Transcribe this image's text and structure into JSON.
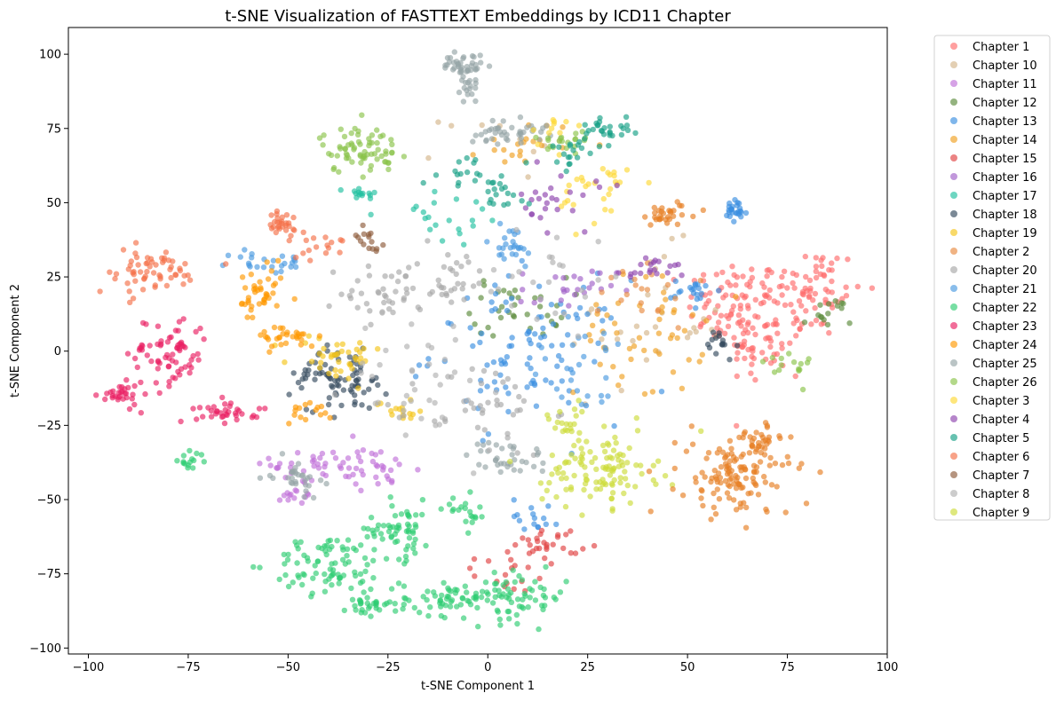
{
  "chart_data": {
    "type": "scatter",
    "title": "t-SNE Visualization of FASTTEXT Embeddings by ICD11 Chapter",
    "xlabel": "t-SNE Component 1",
    "ylabel": "t-SNE Component 2",
    "xlim": [
      -105,
      100
    ],
    "ylim": [
      -102,
      109
    ],
    "xticks": [
      -100,
      -75,
      -50,
      -25,
      0,
      25,
      50,
      75,
      100
    ],
    "yticks": [
      -100,
      -75,
      -50,
      -25,
      0,
      25,
      50,
      75,
      100
    ],
    "grid": false,
    "legend_position": "outside-right",
    "point_opacity": 0.65,
    "series": [
      {
        "name": "Chapter 1",
        "color": "#ff6b6b",
        "clusters": [
          {
            "cx": 62,
            "cy": 15,
            "sx": 6,
            "sy": 8,
            "n": 90
          },
          {
            "cx": 80,
            "cy": 20,
            "sx": 7,
            "sy": 8,
            "n": 80
          },
          {
            "cx": 70,
            "cy": 0,
            "sx": 5,
            "sy": 6,
            "n": 40
          }
        ]
      },
      {
        "name": "Chapter 10",
        "color": "#d4b58a",
        "clusters": [
          {
            "cx": 40,
            "cy": 10,
            "sx": 10,
            "sy": 12,
            "n": 30
          },
          {
            "cx": 5,
            "cy": 70,
            "sx": 8,
            "sy": 6,
            "n": 10
          }
        ]
      },
      {
        "name": "Chapter 11",
        "color": "#c070d8",
        "clusters": [
          {
            "cx": -42,
            "cy": -38,
            "sx": 6,
            "sy": 4,
            "n": 40
          },
          {
            "cx": -28,
            "cy": -40,
            "sx": 5,
            "sy": 3,
            "n": 25
          },
          {
            "cx": -48,
            "cy": -48,
            "sx": 3,
            "sy": 3,
            "n": 15
          }
        ]
      },
      {
        "name": "Chapter 12",
        "color": "#5a8a3a",
        "clusters": [
          {
            "cx": 8,
            "cy": 15,
            "sx": 6,
            "sy": 5,
            "n": 35
          },
          {
            "cx": 85,
            "cy": 12,
            "sx": 3,
            "sy": 3,
            "n": 15
          }
        ]
      },
      {
        "name": "Chapter 13",
        "color": "#3a8fe0",
        "clusters": [
          {
            "cx": 10,
            "cy": 0,
            "sx": 12,
            "sy": 12,
            "n": 100
          },
          {
            "cx": 62,
            "cy": 47,
            "sx": 1.5,
            "sy": 2,
            "n": 25
          },
          {
            "cx": 52,
            "cy": 20,
            "sx": 3,
            "sy": 2,
            "n": 20
          },
          {
            "cx": 12,
            "cy": -55,
            "sx": 3,
            "sy": 3,
            "n": 15
          }
        ]
      },
      {
        "name": "Chapter 14",
        "color": "#f0a020",
        "clusters": [
          {
            "cx": 38,
            "cy": 5,
            "sx": 8,
            "sy": 10,
            "n": 50
          },
          {
            "cx": 10,
            "cy": 70,
            "sx": 6,
            "sy": 4,
            "n": 20
          }
        ]
      },
      {
        "name": "Chapter 15",
        "color": "#e04040",
        "clusters": [
          {
            "cx": 15,
            "cy": -65,
            "sx": 4,
            "sy": 3,
            "n": 30
          },
          {
            "cx": 5,
            "cy": -75,
            "sx": 4,
            "sy": 3,
            "n": 15
          }
        ]
      },
      {
        "name": "Chapter 16",
        "color": "#a060c8",
        "clusters": [
          {
            "cx": 20,
            "cy": 20,
            "sx": 6,
            "sy": 4,
            "n": 25
          }
        ]
      },
      {
        "name": "Chapter 17",
        "color": "#20c0a0",
        "clusters": [
          {
            "cx": -32,
            "cy": 52,
            "sx": 2,
            "sy": 2,
            "n": 15
          },
          {
            "cx": -10,
            "cy": 45,
            "sx": 8,
            "sy": 6,
            "n": 20
          }
        ]
      },
      {
        "name": "Chapter 18",
        "color": "#34495e",
        "clusters": [
          {
            "cx": -35,
            "cy": -10,
            "sx": 5,
            "sy": 5,
            "n": 60
          },
          {
            "cx": -45,
            "cy": -8,
            "sx": 3,
            "sy": 3,
            "n": 20
          },
          {
            "cx": 58,
            "cy": 2,
            "sx": 2,
            "sy": 3,
            "n": 15
          }
        ]
      },
      {
        "name": "Chapter 19",
        "color": "#f5c518",
        "clusters": [
          {
            "cx": -38,
            "cy": -2,
            "sx": 6,
            "sy": 4,
            "n": 40
          },
          {
            "cx": -22,
            "cy": -20,
            "sx": 3,
            "sy": 2,
            "n": 15
          }
        ]
      },
      {
        "name": "Chapter 2",
        "color": "#e88a40",
        "clusters": [
          {
            "cx": 40,
            "cy": 20,
            "sx": 6,
            "sy": 6,
            "n": 20
          }
        ]
      },
      {
        "name": "Chapter 20",
        "color": "#a8a8a8",
        "clusters": [
          {
            "cx": -25,
            "cy": 20,
            "sx": 6,
            "sy": 5,
            "n": 40
          },
          {
            "cx": -10,
            "cy": 25,
            "sx": 6,
            "sy": 5,
            "n": 30
          },
          {
            "cx": 0,
            "cy": -20,
            "sx": 8,
            "sy": 8,
            "n": 40
          }
        ]
      },
      {
        "name": "Chapter 21",
        "color": "#4a9ae0",
        "clusters": [
          {
            "cx": -55,
            "cy": 30,
            "sx": 5,
            "sy": 2,
            "n": 25
          },
          {
            "cx": 5,
            "cy": 35,
            "sx": 4,
            "sy": 4,
            "n": 25
          },
          {
            "cx": 25,
            "cy": -5,
            "sx": 8,
            "sy": 8,
            "n": 25
          }
        ]
      },
      {
        "name": "Chapter 22",
        "color": "#2ecc71",
        "clusters": [
          {
            "cx": -40,
            "cy": -72,
            "sx": 7,
            "sy": 5,
            "n": 80
          },
          {
            "cx": -22,
            "cy": -60,
            "sx": 4,
            "sy": 5,
            "n": 60
          },
          {
            "cx": -10,
            "cy": -83,
            "sx": 6,
            "sy": 3,
            "n": 60
          },
          {
            "cx": 8,
            "cy": -83,
            "sx": 6,
            "sy": 4,
            "n": 60
          },
          {
            "cx": -30,
            "cy": -85,
            "sx": 3,
            "sy": 2,
            "n": 30
          },
          {
            "cx": -75,
            "cy": -37,
            "sx": 2,
            "sy": 1.5,
            "n": 15
          },
          {
            "cx": -5,
            "cy": -55,
            "sx": 3,
            "sy": 3,
            "n": 20
          }
        ]
      },
      {
        "name": "Chapter 23",
        "color": "#e91e63",
        "clusters": [
          {
            "cx": -80,
            "cy": 0,
            "sx": 5,
            "sy": 6,
            "n": 70
          },
          {
            "cx": -92,
            "cy": -15,
            "sx": 2.5,
            "sy": 2,
            "n": 30
          },
          {
            "cx": -65,
            "cy": -20,
            "sx": 4,
            "sy": 2,
            "n": 35
          }
        ]
      },
      {
        "name": "Chapter 24",
        "color": "#ff9800",
        "clusters": [
          {
            "cx": -57,
            "cy": 18,
            "sx": 3,
            "sy": 5,
            "n": 40
          },
          {
            "cx": -50,
            "cy": 5,
            "sx": 4,
            "sy": 2,
            "n": 30
          },
          {
            "cx": -45,
            "cy": -20,
            "sx": 3,
            "sy": 2,
            "n": 15
          }
        ]
      },
      {
        "name": "Chapter 25",
        "color": "#95a5a6",
        "clusters": [
          {
            "cx": -6,
            "cy": 96,
            "sx": 2.5,
            "sy": 2,
            "n": 40
          },
          {
            "cx": -5,
            "cy": 88,
            "sx": 1.5,
            "sy": 2,
            "n": 15
          },
          {
            "cx": 5,
            "cy": 74,
            "sx": 5,
            "sy": 2,
            "n": 40
          },
          {
            "cx": -48,
            "cy": -42,
            "sx": 3,
            "sy": 3,
            "n": 30
          },
          {
            "cx": 5,
            "cy": -36,
            "sx": 5,
            "sy": 3,
            "n": 35
          }
        ]
      },
      {
        "name": "Chapter 26",
        "color": "#8bc34a",
        "clusters": [
          {
            "cx": -32,
            "cy": 68,
            "sx": 5,
            "sy": 4,
            "n": 70
          },
          {
            "cx": 20,
            "cy": 70,
            "sx": 4,
            "sy": 3,
            "n": 20
          },
          {
            "cx": 75,
            "cy": -5,
            "sx": 3,
            "sy": 3,
            "n": 15
          }
        ]
      },
      {
        "name": "Chapter 3",
        "color": "#fdd835",
        "clusters": [
          {
            "cx": 28,
            "cy": 55,
            "sx": 5,
            "sy": 6,
            "n": 30
          },
          {
            "cx": 15,
            "cy": 75,
            "sx": 3,
            "sy": 3,
            "n": 10
          }
        ]
      },
      {
        "name": "Chapter 4",
        "color": "#8e44ad",
        "clusters": [
          {
            "cx": 18,
            "cy": 50,
            "sx": 5,
            "sy": 5,
            "n": 25
          },
          {
            "cx": 42,
            "cy": 28,
            "sx": 4,
            "sy": 2,
            "n": 20
          }
        ]
      },
      {
        "name": "Chapter 5",
        "color": "#16a085",
        "clusters": [
          {
            "cx": 30,
            "cy": 75,
            "sx": 3,
            "sy": 2,
            "n": 25
          },
          {
            "cx": 22,
            "cy": 68,
            "sx": 3,
            "sy": 3,
            "n": 20
          },
          {
            "cx": -5,
            "cy": 60,
            "sx": 6,
            "sy": 3,
            "n": 20
          },
          {
            "cx": 5,
            "cy": 53,
            "sx": 3,
            "sy": 2,
            "n": 15
          }
        ]
      },
      {
        "name": "Chapter 6",
        "color": "#f47048",
        "clusters": [
          {
            "cx": -52,
            "cy": 42,
            "sx": 3,
            "sy": 3,
            "n": 30
          },
          {
            "cx": -85,
            "cy": 27,
            "sx": 7,
            "sy": 4,
            "n": 60
          },
          {
            "cx": -40,
            "cy": 35,
            "sx": 3,
            "sy": 2,
            "n": 15
          }
        ]
      },
      {
        "name": "Chapter 7",
        "color": "#8d5a3a",
        "clusters": [
          {
            "cx": -30,
            "cy": 38,
            "sx": 2,
            "sy": 2,
            "n": 15
          }
        ]
      },
      {
        "name": "Chapter 8",
        "color": "#b0b0b0",
        "clusters": [
          {
            "cx": -15,
            "cy": -10,
            "sx": 10,
            "sy": 12,
            "n": 40
          },
          {
            "cx": 15,
            "cy": 25,
            "sx": 8,
            "sy": 10,
            "n": 25
          }
        ]
      },
      {
        "name": "Chapter 9",
        "color": "#cddc39",
        "clusters": [
          {
            "cx": 28,
            "cy": -40,
            "sx": 7,
            "sy": 6,
            "n": 110
          },
          {
            "cx": 20,
            "cy": -25,
            "sx": 4,
            "sy": 3,
            "n": 20
          }
        ]
      }
    ],
    "extra_clusters": [
      {
        "series": "Chapter 2",
        "color": "#e67e22",
        "clusters": [
          {
            "cx": 62,
            "cy": -42,
            "sx": 7,
            "sy": 7,
            "n": 130
          },
          {
            "cx": 68,
            "cy": -30,
            "sx": 3,
            "sy": 3,
            "n": 25
          },
          {
            "cx": 45,
            "cy": 46,
            "sx": 4,
            "sy": 2,
            "n": 30
          }
        ]
      }
    ]
  }
}
